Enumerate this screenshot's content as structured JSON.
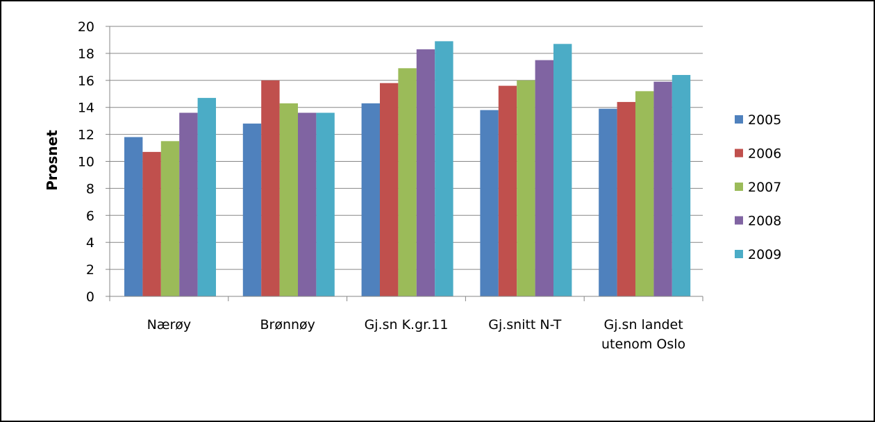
{
  "chart_data": {
    "type": "bar",
    "title": "",
    "xlabel": "",
    "ylabel": "Prosnet",
    "ylim": [
      0,
      20
    ],
    "yticks": [
      0,
      2,
      4,
      6,
      8,
      10,
      12,
      14,
      16,
      18,
      20
    ],
    "grid": true,
    "legend_position": "right",
    "categories": [
      [
        "Nærøy"
      ],
      [
        "Brønnøy"
      ],
      [
        "Gj.sn K.gr.11"
      ],
      [
        "Gj.snitt N-T"
      ],
      [
        "Gj.sn landet",
        "utenom Oslo"
      ]
    ],
    "series": [
      {
        "name": "2005",
        "color": "#4F81BD",
        "values": [
          11.8,
          12.8,
          14.3,
          13.8,
          13.9
        ]
      },
      {
        "name": "2006",
        "color": "#C0504D",
        "values": [
          10.7,
          16.0,
          15.8,
          15.6,
          14.4
        ]
      },
      {
        "name": "2007",
        "color": "#9BBB59",
        "values": [
          11.5,
          14.3,
          16.9,
          16.0,
          15.2
        ]
      },
      {
        "name": "2008",
        "color": "#8064A2",
        "values": [
          13.6,
          13.6,
          18.3,
          17.5,
          15.9
        ]
      },
      {
        "name": "2009",
        "color": "#4BACC6",
        "values": [
          14.7,
          13.6,
          18.9,
          18.7,
          16.4
        ]
      }
    ]
  }
}
